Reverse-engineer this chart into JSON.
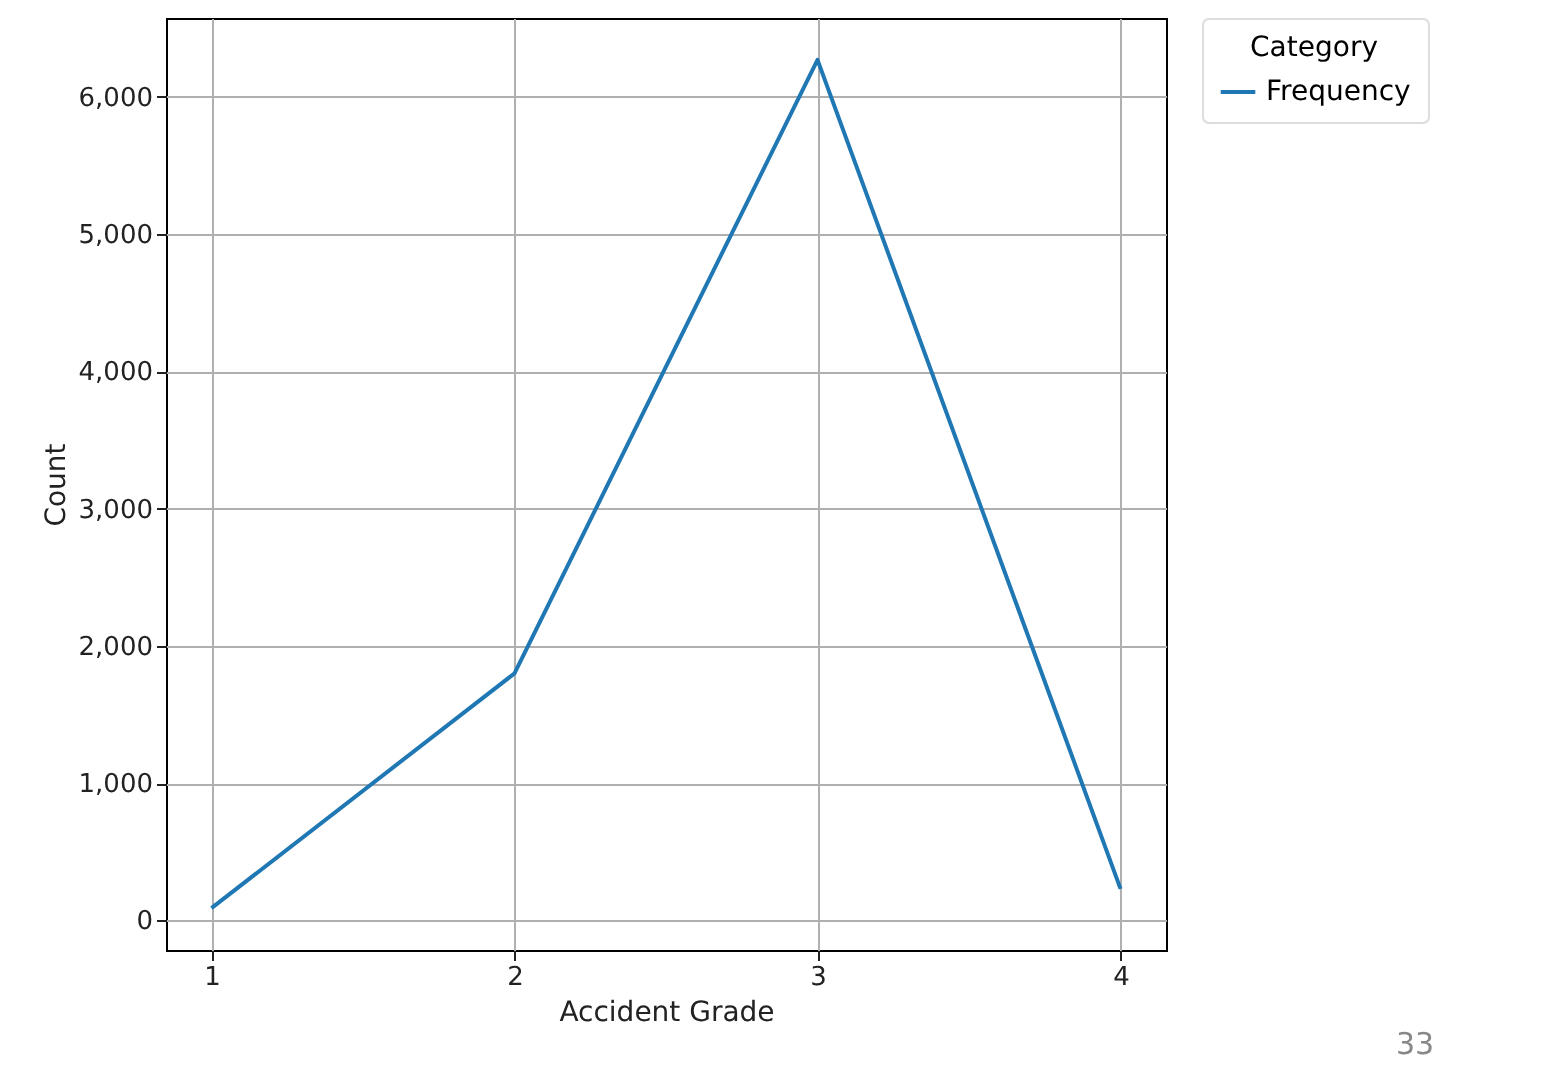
{
  "chart_data": {
    "type": "line",
    "xlabel": "Accident Grade",
    "ylabel": "Count",
    "legend_title": "Category",
    "x": [
      1,
      2,
      3,
      4
    ],
    "series": [
      {
        "name": "Frequency",
        "color": "#1f77b4",
        "values": [
          90,
          1800,
          6270,
          230
        ]
      }
    ],
    "xlim": [
      0.85,
      4.15
    ],
    "xticks": [
      1,
      2,
      3,
      4
    ],
    "ylim": [
      -215,
      6575
    ],
    "yticks": [
      {
        "value": 0,
        "label": "0"
      },
      {
        "value": 1000,
        "label": "1,000"
      },
      {
        "value": 2000,
        "label": "2,000"
      },
      {
        "value": 3000,
        "label": "3,000"
      },
      {
        "value": 4000,
        "label": "4,000"
      },
      {
        "value": 5000,
        "label": "5,000"
      },
      {
        "value": 6000,
        "label": "6,000"
      }
    ],
    "grid": true,
    "legend": "top right",
    "marker": "none",
    "line_style": "solid",
    "annotations": [
      "33"
    ]
  }
}
